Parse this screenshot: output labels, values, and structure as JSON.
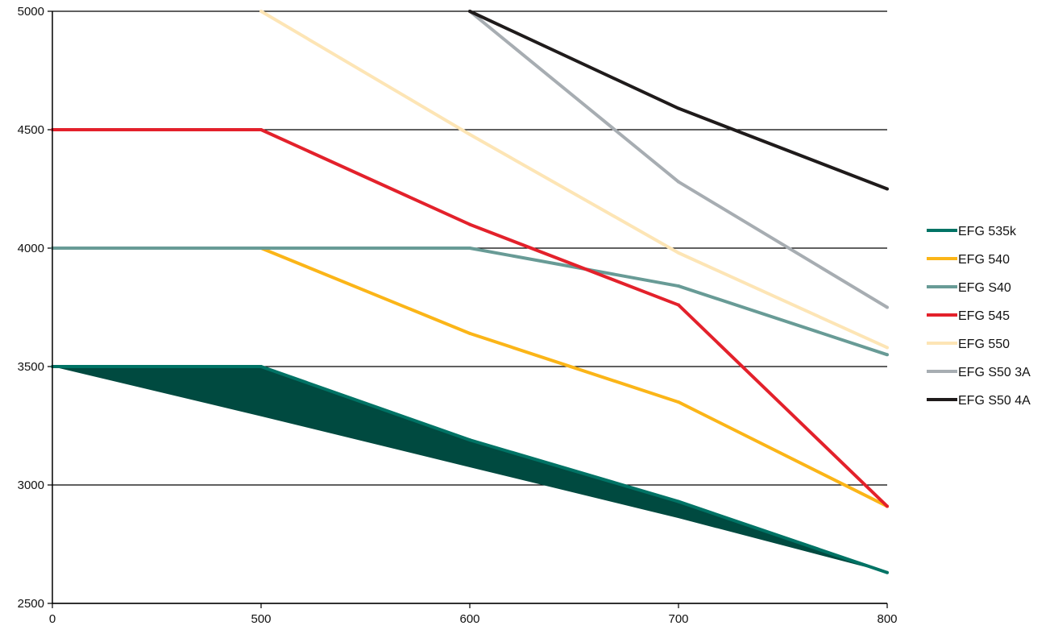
{
  "chart_data": {
    "type": "line",
    "title": "",
    "xlabel": "",
    "ylabel": "",
    "x": [
      "0",
      "500",
      "600",
      "700",
      "800"
    ],
    "ylim": [
      2500,
      5000
    ],
    "yticks": [
      2500,
      3000,
      3500,
      4000,
      4500,
      5000
    ],
    "grid": true,
    "legend_position": "right",
    "series": [
      {
        "name": "EFG 535k",
        "color": "#007365",
        "values": [
          3500,
          3500,
          3190,
          2930,
          2630
        ],
        "band_lower": [
          3500,
          3290,
          3075,
          2860,
          2630
        ],
        "band_color": "#004a40"
      },
      {
        "name": "EFG 540",
        "color": "#fbb518",
        "values": [
          null,
          4000,
          3640,
          3350,
          2910
        ]
      },
      {
        "name": "EFG S40",
        "color": "#689b96",
        "values": [
          4000,
          4000,
          4000,
          3840,
          3550
        ]
      },
      {
        "name": "EFG 545",
        "color": "#e3212b",
        "values": [
          4500,
          4500,
          4100,
          3760,
          2910
        ]
      },
      {
        "name": "EFG 550",
        "color": "#fde5b5",
        "values": [
          null,
          5000,
          4480,
          3980,
          3580
        ]
      },
      {
        "name": "EFG S50 3A",
        "color": "#a7adb2",
        "values": [
          null,
          null,
          5000,
          4280,
          3750
        ]
      },
      {
        "name": "EFG S50 4A",
        "color": "#1f1b1b",
        "values": [
          null,
          null,
          5000,
          4590,
          4250
        ]
      }
    ]
  }
}
